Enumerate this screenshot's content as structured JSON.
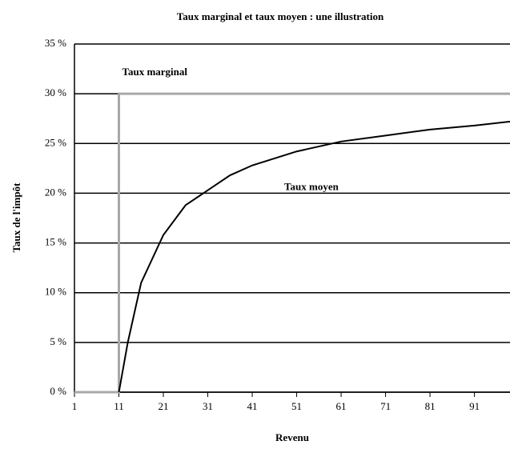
{
  "chart_data": {
    "type": "line",
    "title": "Taux marginal et taux moyen : une illustration",
    "x_label": "Revenu",
    "y_label": "Taux de l'impôt",
    "xlim": [
      1,
      99
    ],
    "ylim": [
      0,
      35
    ],
    "xticks": [
      1,
      11,
      21,
      31,
      41,
      51,
      61,
      71,
      81,
      91
    ],
    "yticks": [
      {
        "value": 0,
        "label": "0 %"
      },
      {
        "value": 5,
        "label": "5 %"
      },
      {
        "value": 10,
        "label": "10 %"
      },
      {
        "value": 15,
        "label": "15 %"
      },
      {
        "value": 20,
        "label": "20 %"
      },
      {
        "value": 25,
        "label": "25 %"
      },
      {
        "value": 30,
        "label": "30 %"
      },
      {
        "value": 35,
        "label": "35 %"
      }
    ],
    "grid": true,
    "series": [
      {
        "name": "Taux marginal",
        "color": "#a8a8a8",
        "x": [
          1,
          11,
          11,
          99
        ],
        "values": [
          0,
          0,
          30,
          30
        ]
      },
      {
        "name": "Taux moyen",
        "color": "#000000",
        "x": [
          11,
          13,
          16,
          21,
          26,
          31,
          36,
          41,
          51,
          61,
          71,
          81,
          91,
          99
        ],
        "values": [
          0,
          5,
          11,
          15.8,
          18.8,
          20.3,
          21.8,
          22.8,
          24.2,
          25.2,
          25.8,
          26.4,
          26.8,
          27.2
        ]
      }
    ]
  }
}
